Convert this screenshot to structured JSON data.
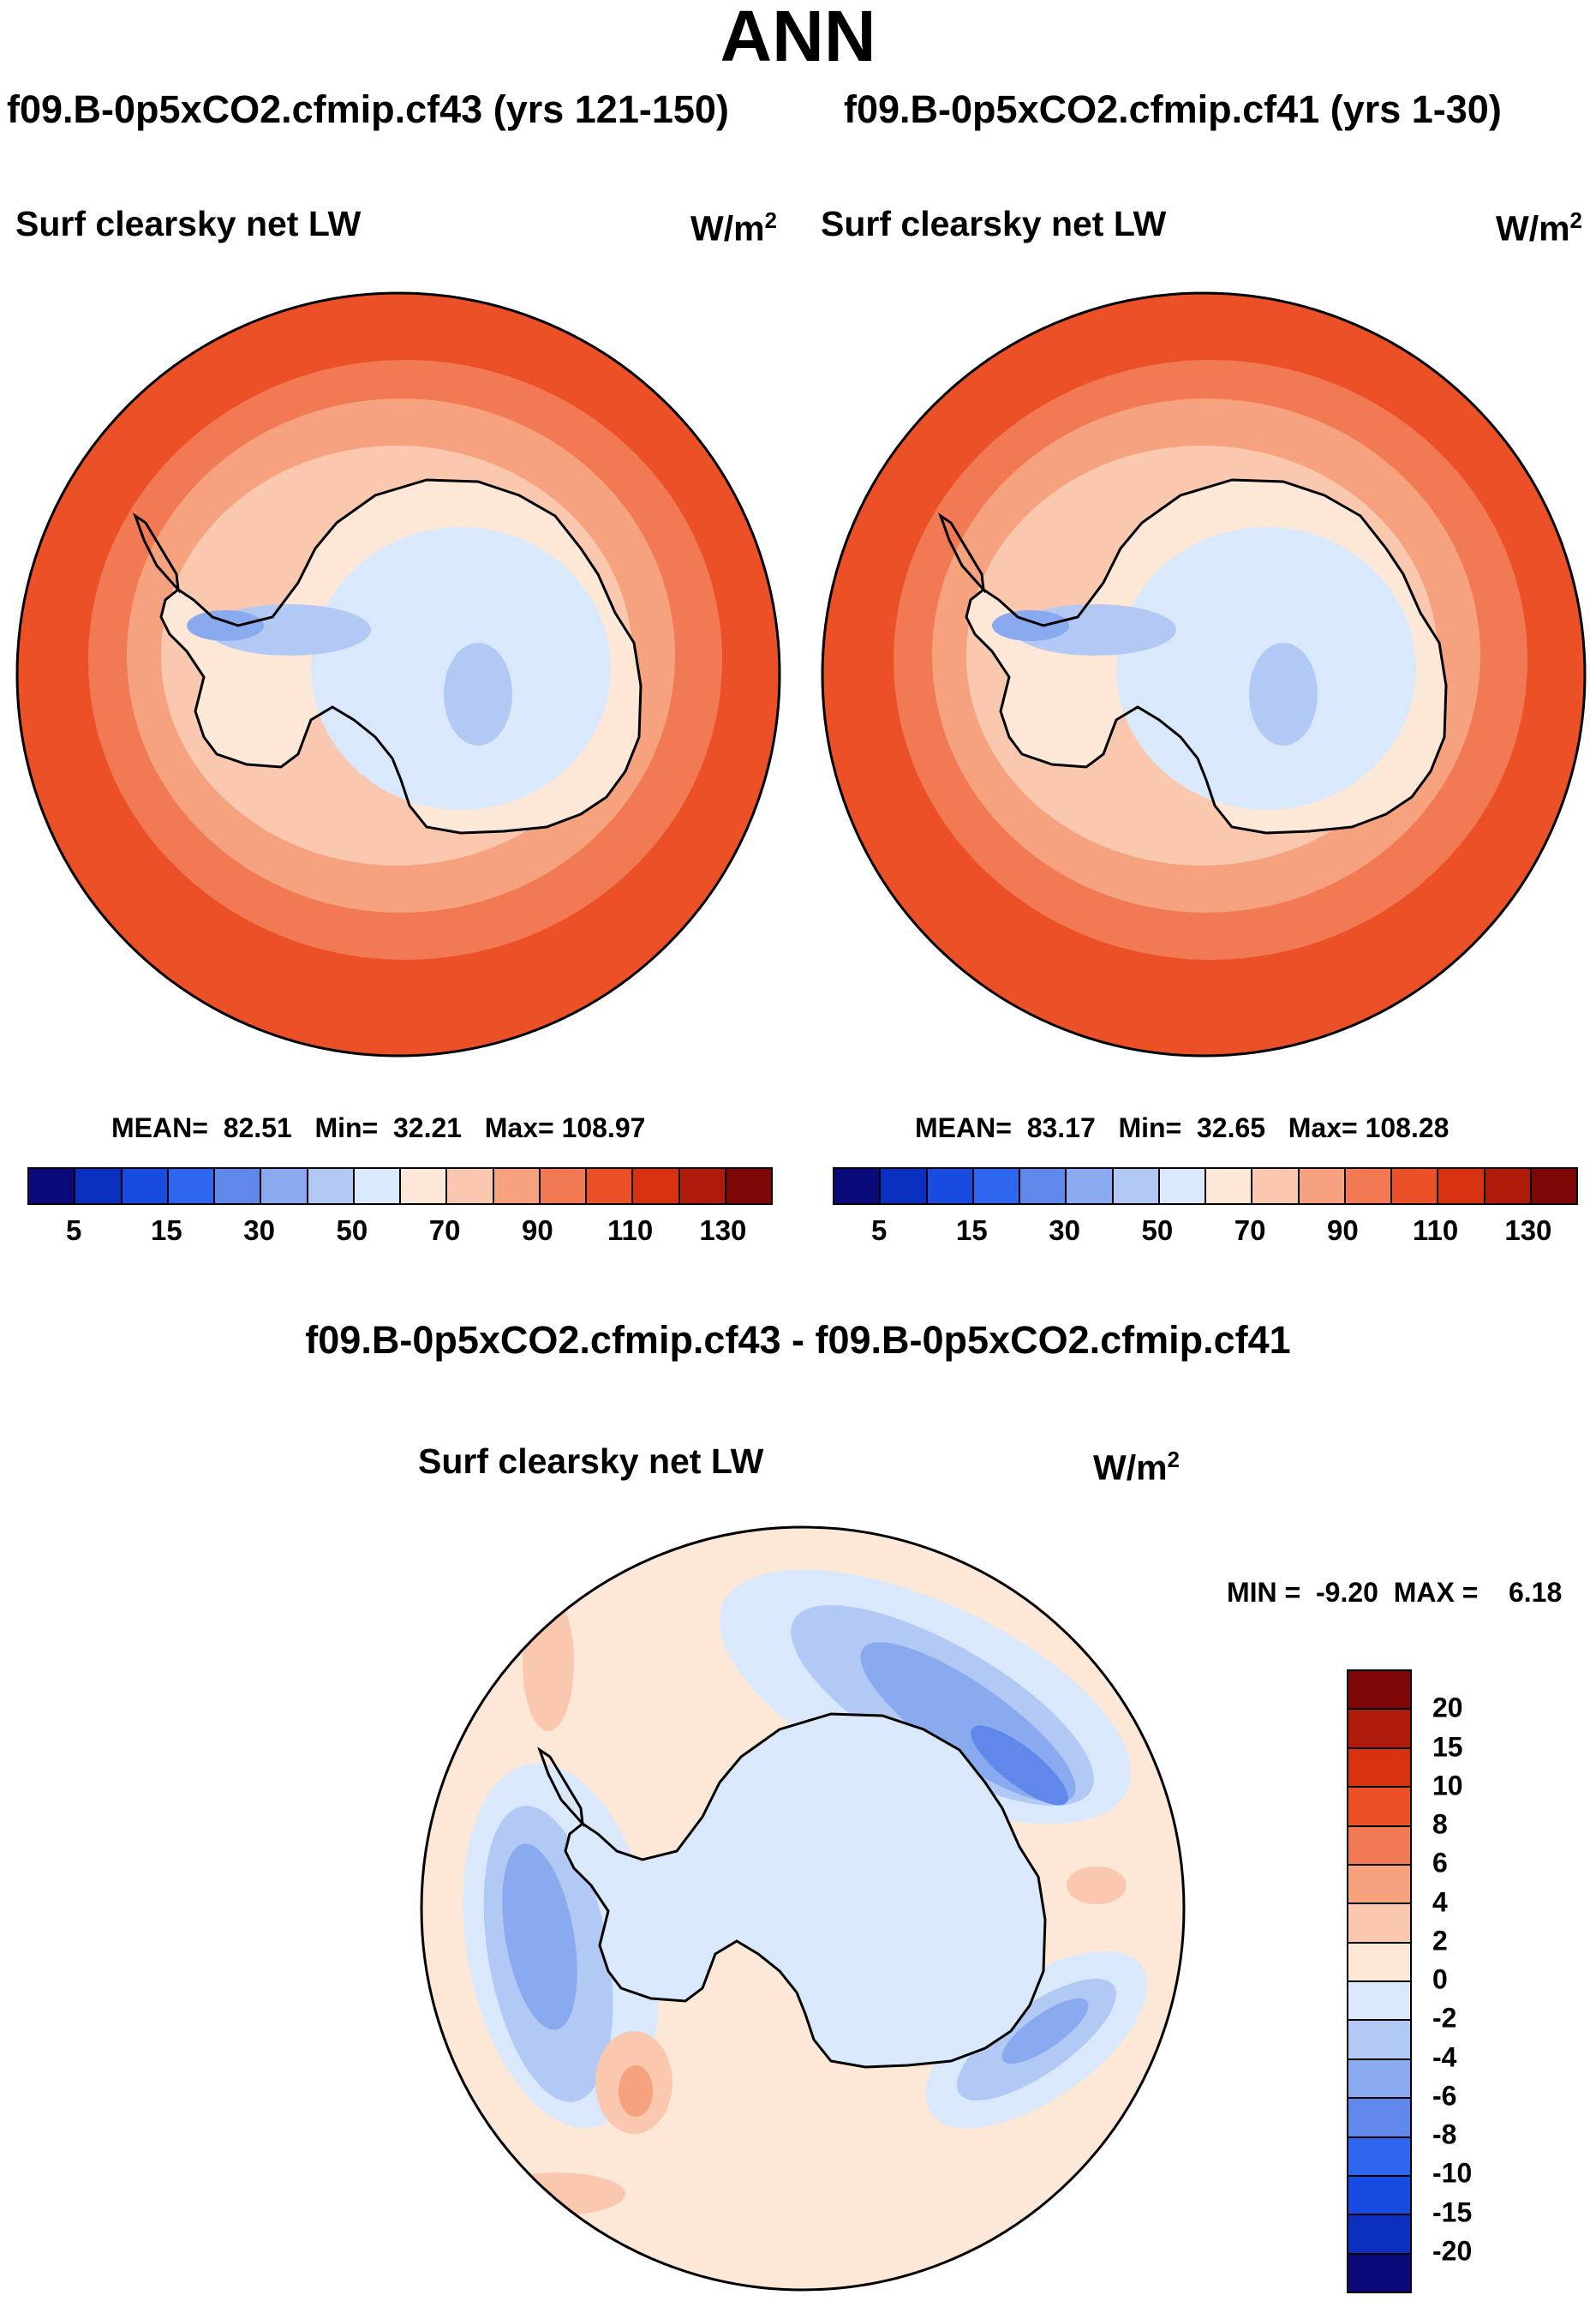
{
  "main_title": "ANN",
  "panels": {
    "left": {
      "case": "f09.B-0p5xCO2.cfmip.cf43 (yrs 121-150)",
      "variable": "Surf clearsky net LW",
      "units": "W/m",
      "units_exp": "2",
      "stats": "MEAN=  82.51   Min=  32.21   Max= 108.97"
    },
    "right": {
      "case": "f09.B-0p5xCO2.cfmip.cf41 (yrs 1-30)",
      "variable": "Surf clearsky net LW",
      "units": "W/m",
      "units_exp": "2",
      "stats": "MEAN=  83.17   Min=  32.65   Max= 108.28"
    },
    "diff": {
      "title": "f09.B-0p5xCO2.cfmip.cf43 - f09.B-0p5xCO2.cfmip.cf41",
      "variable": "Surf clearsky net LW",
      "units": "W/m",
      "units_exp": "2",
      "stats": "MIN =  -9.20  MAX =    6.18"
    }
  },
  "abs_colorbar": {
    "colors": [
      "#0a0a7a",
      "#0b2fbf",
      "#1a4be0",
      "#2f66f0",
      "#6088ea",
      "#8aaaf0",
      "#b3c9f5",
      "#d9e8fb",
      "#fde8d8",
      "#f9c8ae",
      "#f6a27e",
      "#f17a54",
      "#ec5026",
      "#d6320f",
      "#ae1b0a",
      "#7e0607"
    ],
    "labels": [
      "5",
      "15",
      "30",
      "50",
      "70",
      "90",
      "110",
      "130"
    ]
  },
  "diff_colorbar": {
    "colors": [
      "#7e0607",
      "#ae1b0a",
      "#d6320f",
      "#ec5026",
      "#f17a54",
      "#f6a27e",
      "#f9c8ae",
      "#fde8d8",
      "#d9e8fb",
      "#b3c9f5",
      "#8aaaf0",
      "#6088ea",
      "#2f66f0",
      "#1a4be0",
      "#0b2fbf",
      "#0a0a7a"
    ],
    "labels": [
      "20",
      "15",
      "10",
      "8",
      "6",
      "4",
      "2",
      "0",
      "-2",
      "-4",
      "-6",
      "-8",
      "-10",
      "-15",
      "-20"
    ]
  },
  "map_colors": {
    "ocean_outer": "#ec5026",
    "ocean_mid": "#f17a54",
    "ocean_inner": "#f6a27e",
    "shelf": "#f9c8ae",
    "coast": "#fde8d8",
    "ice": "#d9e8fb",
    "ice_low": "#b3c9f5",
    "ice_lower": "#8aaaf0",
    "diff_bg": "#fde8d8",
    "diff_neg1": "#d9e8fb",
    "diff_neg2": "#b3c9f5",
    "diff_neg3": "#8aaaf0",
    "diff_neg4": "#6088ea",
    "diff_pos1": "#f9c8ae",
    "diff_pos2": "#f6a27e"
  }
}
